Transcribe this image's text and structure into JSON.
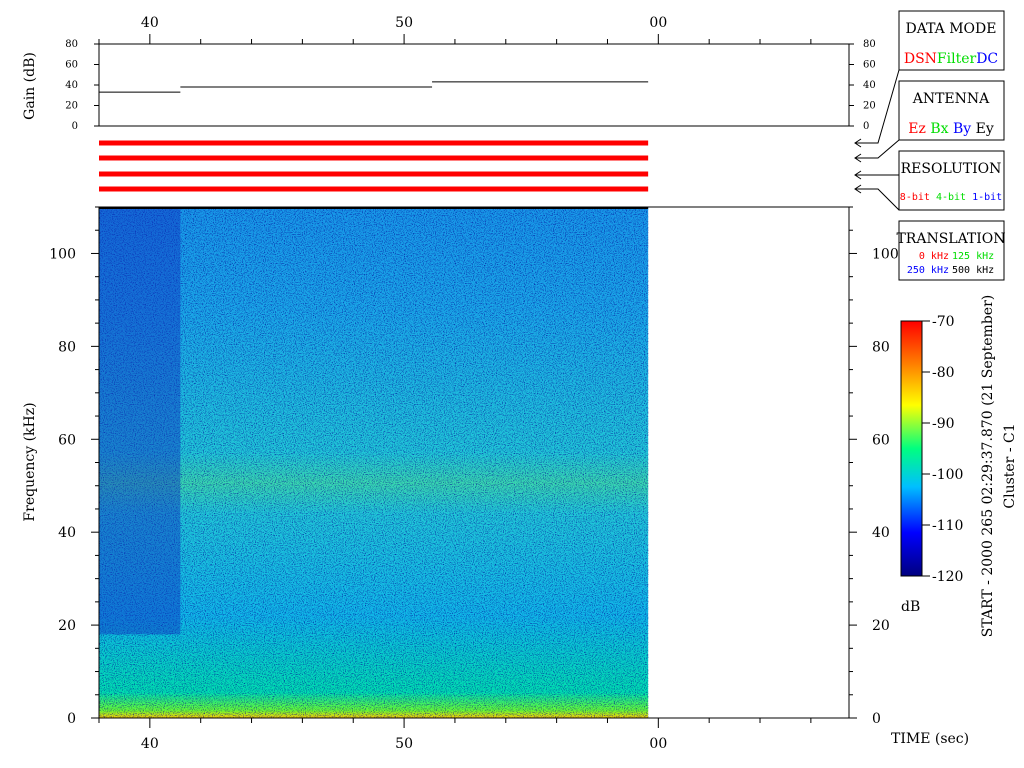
{
  "chart_data": {
    "type": "heatmap",
    "xlabel": "TIME (sec)",
    "ylabel": "Frequency (kHz)",
    "gain_label": "Gain (dB)",
    "x_tick_labels": [
      "40",
      "50",
      "00"
    ],
    "x_ticks_sec": [
      40,
      50,
      60
    ],
    "x_range_sec": [
      38,
      67.5
    ],
    "data_end_sec": 59.6,
    "y_ticks": [
      0,
      20,
      40,
      60,
      80,
      100
    ],
    "ylim": [
      0,
      110
    ],
    "gain_ticks": [
      0,
      20,
      40,
      60,
      80
    ],
    "gain_ylim": [
      0,
      80
    ],
    "gain_steps": [
      {
        "x_start": 38,
        "x_end": 41.2,
        "value": 33
      },
      {
        "x_start": 41.2,
        "x_end": 51.1,
        "value": 38
      },
      {
        "x_start": 51.1,
        "x_end": 59.6,
        "value": 43
      }
    ],
    "colorbar": {
      "label": "dB",
      "ticks": [
        -70,
        -80,
        -90,
        -100,
        -110,
        -120
      ],
      "range": [
        -120,
        -70
      ],
      "colors": [
        "#00007f",
        "#0000ff",
        "#00bfff",
        "#00ff80",
        "#ffff00",
        "#ff8000",
        "#ff0000"
      ]
    },
    "side_title": "START - 2000 265 02:29:37.870 (21 September)",
    "side_subtitle": "Cluster - C1"
  },
  "legend_boxes": {
    "data_mode": {
      "title": "DATA MODE",
      "options": [
        {
          "label": "DSN",
          "color": "#ff0000"
        },
        {
          "label": "Filter",
          "color": "#00dd00"
        },
        {
          "label": "DC",
          "color": "#0000ff"
        }
      ]
    },
    "antenna": {
      "title": "ANTENNA",
      "options": [
        {
          "label": "Ez",
          "color": "#ff0000"
        },
        {
          "label": "Bx",
          "color": "#00dd00"
        },
        {
          "label": "By",
          "color": "#0000ff"
        },
        {
          "label": "Ey",
          "color": "#000000"
        }
      ]
    },
    "resolution": {
      "title": "RESOLUTION",
      "options": [
        {
          "label": "8-bit",
          "color": "#ff0000"
        },
        {
          "label": "4-bit",
          "color": "#00dd00"
        },
        {
          "label": "1-bit",
          "color": "#0000ff"
        }
      ]
    },
    "translation": {
      "title": "TRANSLATION",
      "options": [
        {
          "label": "0 kHz",
          "color": "#ff0000"
        },
        {
          "label": "125 kHz",
          "color": "#00dd00"
        },
        {
          "label": "250 kHz",
          "color": "#0000ff"
        },
        {
          "label": "500 kHz",
          "color": "#000000"
        }
      ]
    }
  },
  "status_bar_color": "#ff0000"
}
